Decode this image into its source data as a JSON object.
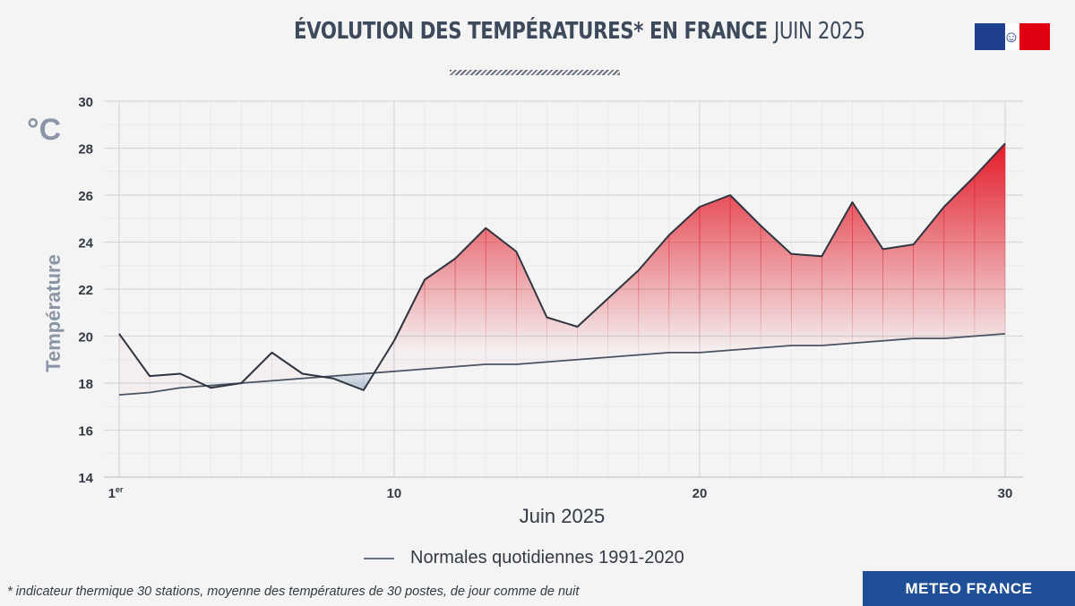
{
  "header": {
    "title_bold": "ÉVOLUTION DES TEMPÉRATURES* EN FRANCE",
    "title_light": "JUIN 2025"
  },
  "footer": {
    "footnote": "* indicateur thermique 30 stations, moyenne des températures de 30 postes, de jour comme de nuit",
    "brand": "METEO FRANCE"
  },
  "colors": {
    "above_normal": "#e3202d",
    "below_normal": "#9fb4c9",
    "series_line": "#2f3540",
    "axis_text": "#333a44",
    "brand_blue": "#1f4f96"
  },
  "chart_data": {
    "type": "line",
    "unit_label": "°C",
    "ylabel": "Température",
    "xlabel": "Juin 2025",
    "ylim": [
      14,
      30
    ],
    "xlim": [
      1,
      30
    ],
    "y_ticks": [
      "14",
      "16",
      "18",
      "20",
      "22",
      "24",
      "26",
      "28",
      "30"
    ],
    "x_ticks": [
      {
        "x": 1,
        "label": "1",
        "sup": "er"
      },
      {
        "x": 10,
        "label": "10",
        "sup": ""
      },
      {
        "x": 20,
        "label": "20",
        "sup": ""
      },
      {
        "x": 30,
        "label": "30",
        "sup": ""
      }
    ],
    "grid": true,
    "x": [
      1,
      2,
      3,
      4,
      5,
      6,
      7,
      8,
      9,
      10,
      11,
      12,
      13,
      14,
      15,
      16,
      17,
      18,
      19,
      20,
      21,
      22,
      23,
      24,
      25,
      26,
      27,
      28,
      29,
      30
    ],
    "series": [
      {
        "name": "",
        "values": [
          20.1,
          18.3,
          18.4,
          17.8,
          18.0,
          19.3,
          18.4,
          18.2,
          17.7,
          19.8,
          22.4,
          23.3,
          24.6,
          23.6,
          20.8,
          20.4,
          21.6,
          22.8,
          24.3,
          25.5,
          26.0,
          24.7,
          23.5,
          23.4,
          25.7,
          23.7,
          23.9,
          25.5,
          26.8,
          28.2
        ]
      },
      {
        "name": "Normales quotidiennes 1991-2020",
        "values": [
          17.5,
          17.6,
          17.8,
          17.9,
          18.0,
          18.1,
          18.2,
          18.3,
          18.4,
          18.5,
          18.6,
          18.7,
          18.8,
          18.8,
          18.9,
          19.0,
          19.1,
          19.2,
          19.3,
          19.3,
          19.4,
          19.5,
          19.6,
          19.6,
          19.7,
          19.8,
          19.9,
          19.9,
          20.0,
          20.1
        ]
      }
    ],
    "legend_position": "bottom-center"
  }
}
